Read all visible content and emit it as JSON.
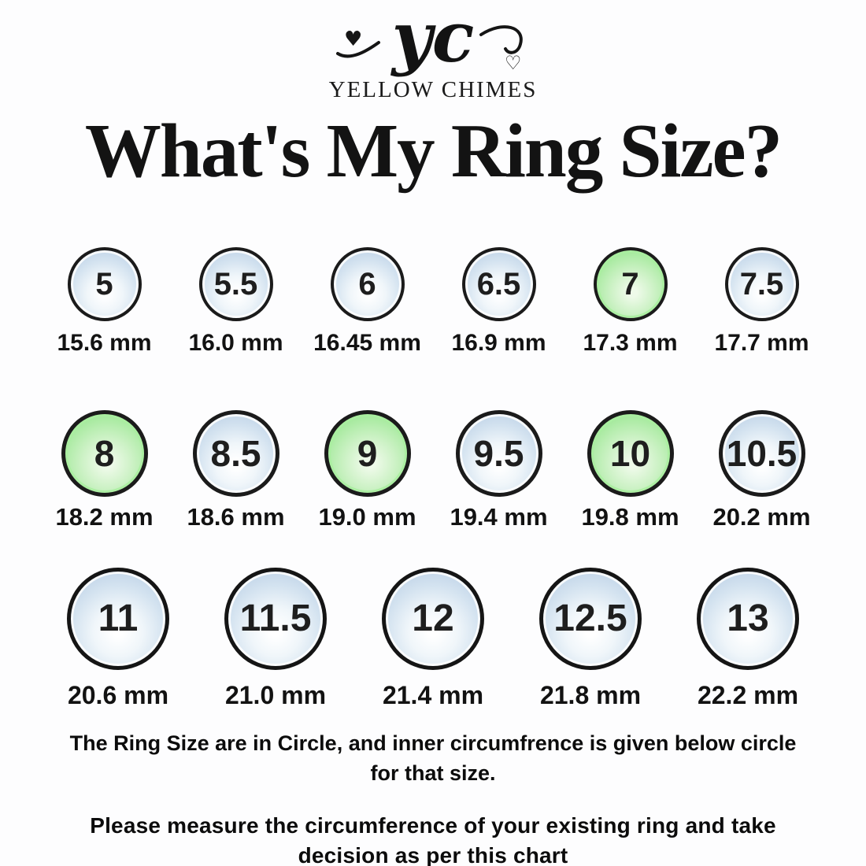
{
  "brand": {
    "monogram": "yc",
    "name": "YELLOW CHIMES"
  },
  "title": "What's My Ring Size?",
  "rows": [
    [
      {
        "size": "5",
        "mm": "15.6 mm",
        "highlight": false
      },
      {
        "size": "5.5",
        "mm": "16.0 mm",
        "highlight": false
      },
      {
        "size": "6",
        "mm": "16.45 mm",
        "highlight": false
      },
      {
        "size": "6.5",
        "mm": "16.9 mm",
        "highlight": false
      },
      {
        "size": "7",
        "mm": "17.3 mm",
        "highlight": true
      },
      {
        "size": "7.5",
        "mm": "17.7 mm",
        "highlight": false
      }
    ],
    [
      {
        "size": "8",
        "mm": "18.2 mm",
        "highlight": true
      },
      {
        "size": "8.5",
        "mm": "18.6 mm",
        "highlight": false
      },
      {
        "size": "9",
        "mm": "19.0 mm",
        "highlight": true
      },
      {
        "size": "9.5",
        "mm": "19.4 mm",
        "highlight": false
      },
      {
        "size": "10",
        "mm": "19.8 mm",
        "highlight": true
      },
      {
        "size": "10.5",
        "mm": "20.2 mm",
        "highlight": false
      }
    ],
    [
      {
        "size": "11",
        "mm": "20.6 mm",
        "highlight": false
      },
      {
        "size": "11.5",
        "mm": "21.0 mm",
        "highlight": false
      },
      {
        "size": "12",
        "mm": "21.4 mm",
        "highlight": false
      },
      {
        "size": "12.5",
        "mm": "21.8 mm",
        "highlight": false
      },
      {
        "size": "13",
        "mm": "22.2 mm",
        "highlight": false
      }
    ]
  ],
  "notes": {
    "line1": "The Ring Size are in Circle, and inner circumfrence is  given below circle for that size.",
    "line2": "Please measure the circumference of your existing ring and take decision as per this chart"
  },
  "colors": {
    "circle_blue": "#bdd2e6",
    "circle_green": "#9ce898",
    "outline": "#1b1b1b",
    "text": "#131313"
  }
}
